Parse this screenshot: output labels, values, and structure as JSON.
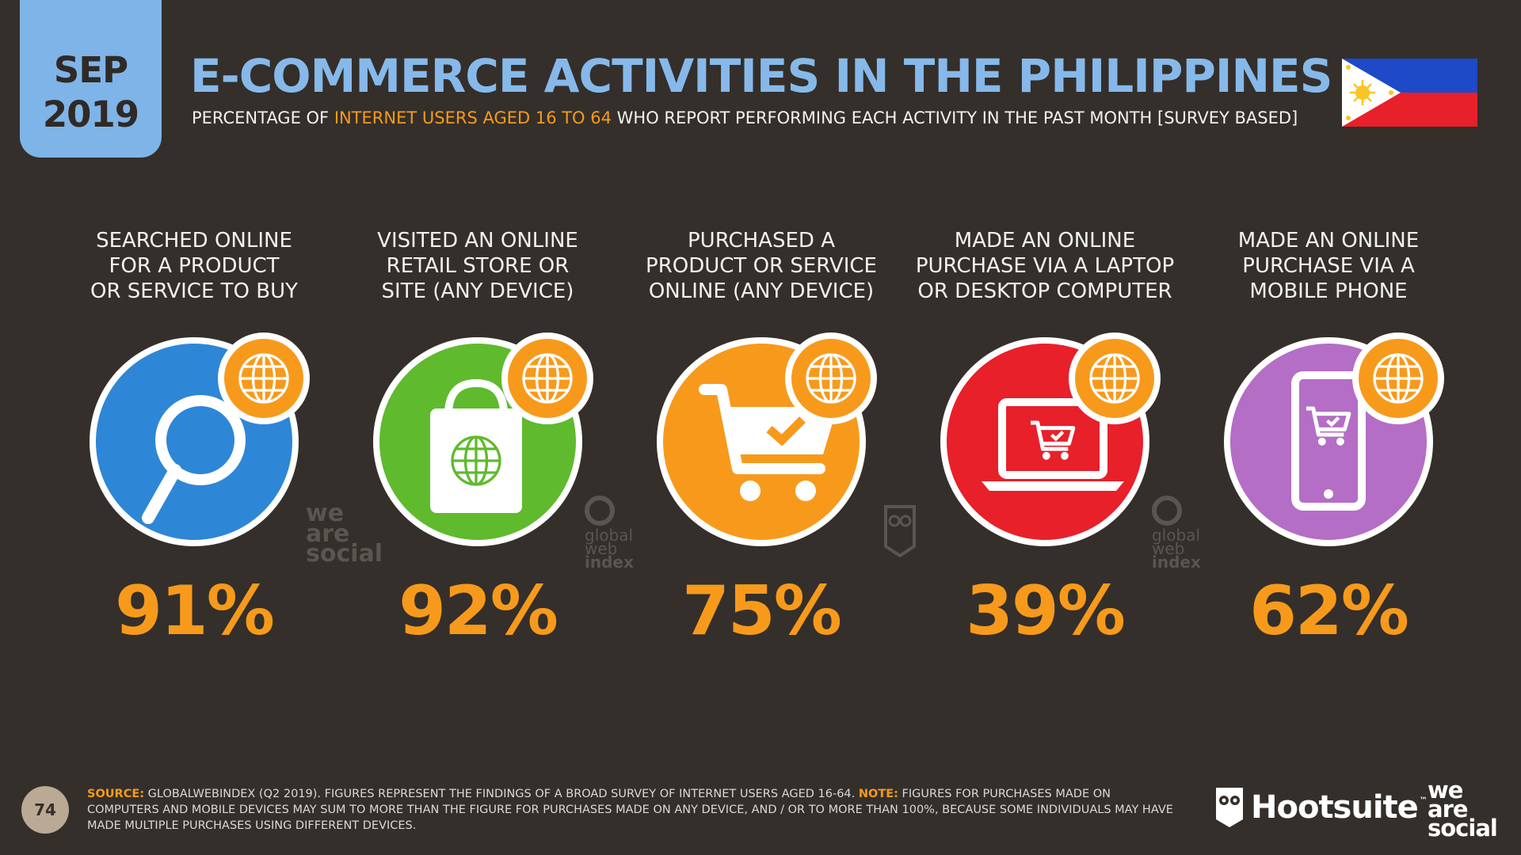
{
  "header": {
    "date_month": "SEP",
    "date_year": "2019",
    "title": "E-COMMERCE ACTIVITIES IN THE PHILIPPINES",
    "subtitle_pre": "PERCENTAGE OF ",
    "subtitle_highlight": "INTERNET USERS AGED 16 TO 64",
    "subtitle_post": " WHO REPORT PERFORMING EACH ACTIVITY IN THE PAST MONTH [SURVEY BASED]",
    "flag_icon": "philippines-flag-icon"
  },
  "chart_data": {
    "type": "bar",
    "title": "E-COMMERCE ACTIVITIES IN THE PHILIPPINES",
    "categories": [
      "SEARCHED ONLINE\nFOR A PRODUCT\nOR SERVICE TO BUY",
      "VISITED AN ONLINE\nRETAIL STORE OR\nSITE (ANY DEVICE)",
      "PURCHASED A\nPRODUCT OR SERVICE\nONLINE (ANY DEVICE)",
      "MADE AN ONLINE\nPURCHASE VIA A LAPTOP\nOR DESKTOP COMPUTER",
      "MADE AN ONLINE\nPURCHASE VIA A\nMOBILE PHONE"
    ],
    "values": [
      91,
      92,
      75,
      39,
      62
    ],
    "value_labels": [
      "91%",
      "92%",
      "75%",
      "39%",
      "62%"
    ],
    "unit": "%",
    "ylim": [
      0,
      100
    ],
    "icons": [
      "magnifier-icon",
      "shopping-bag-icon",
      "shopping-cart-icon",
      "laptop-cart-icon",
      "mobile-phone-cart-icon"
    ],
    "colors": [
      "#2e86d6",
      "#5fba2d",
      "#f79a1c",
      "#e8202a",
      "#b46ec5"
    ],
    "badge_icon": "globe-icon",
    "badge_color": "#f79a1c"
  },
  "watermarks": {
    "was": [
      "we",
      "are",
      "social"
    ],
    "gwi": [
      "global",
      "web",
      "index"
    ]
  },
  "footer": {
    "page_number": "74",
    "source_key": "SOURCE:",
    "source_text": " GLOBALWEBINDEX (Q2 2019). FIGURES REPRESENT THE FINDINGS OF A BROAD SURVEY OF INTERNET USERS AGED 16-64. ",
    "note_key": "NOTE:",
    "note_text": " FIGURES FOR PURCHASES MADE ON COMPUTERS AND MOBILE DEVICES MAY SUM TO MORE THAN THE FIGURE FOR PURCHASES MADE ON ANY DEVICE, AND / OR TO MORE THAN 100%, BECAUSE SOME INDIVIDUALS MAY HAVE MADE MULTIPLE PURCHASES USING DIFFERENT DEVICES.",
    "hootsuite": "Hootsuite",
    "hootsuite_tm": "™",
    "was_lines": [
      "we",
      "are",
      "social"
    ]
  }
}
